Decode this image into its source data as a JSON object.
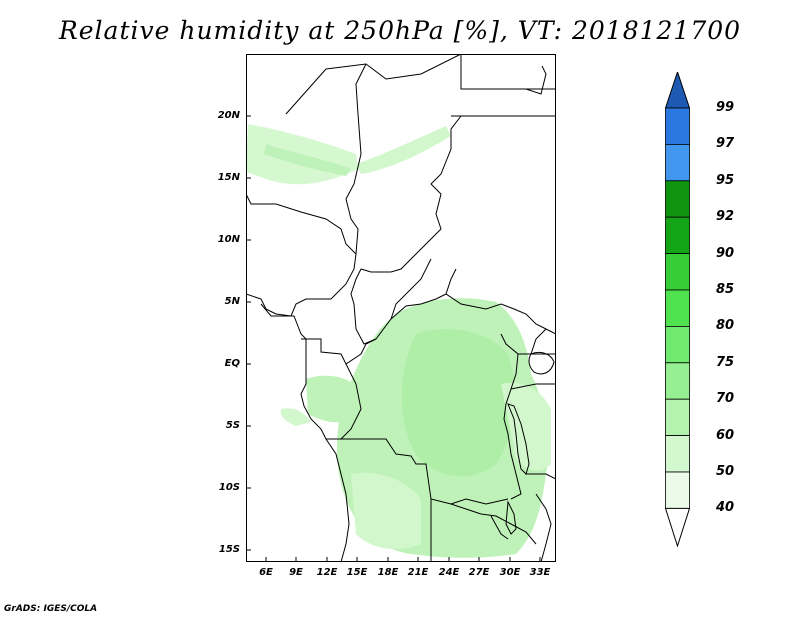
{
  "title": "Relative humidity at 250hPa [%], VT: 2018121700",
  "credit": "GrADS: IGES/COLA",
  "map": {
    "lat_labels": [
      "20N",
      "15N",
      "10N",
      "5N",
      "EQ",
      "5S",
      "10S",
      "15S"
    ],
    "lon_labels": [
      "6E",
      "9E",
      "12E",
      "15E",
      "18E",
      "21E",
      "24E",
      "27E",
      "30E",
      "33E"
    ],
    "lon_range": [
      3,
      33.5
    ],
    "lat_range": [
      -16,
      25
    ],
    "fill_colors": {
      "40-50": "#e8fae6",
      "50-60": "#d2f7cc",
      "60-70": "#bff2b8",
      "70-75": "#a6eda0"
    }
  },
  "colorbar": {
    "levels": [
      "99",
      "97",
      "95",
      "92",
      "90",
      "85",
      "80",
      "75",
      "70",
      "60",
      "50",
      "40"
    ],
    "bins": [
      {
        "color": "#2860d0"
      },
      {
        "color": "#2a78e0"
      },
      {
        "color": "#4196ee"
      },
      {
        "color": "#0f9410"
      },
      {
        "color": "#14a516"
      },
      {
        "color": "#37cd37"
      },
      {
        "color": "#4fe44f"
      },
      {
        "color": "#70ea70"
      },
      {
        "color": "#96ef92"
      },
      {
        "color": "#b3f3ae"
      },
      {
        "color": "#d3f8cf"
      },
      {
        "color": "#eafbe7"
      },
      {
        "color": "#ffffff"
      }
    ],
    "top_arrow_color": "#1e5ab4",
    "bottom_arrow_color": "#ffffff"
  }
}
